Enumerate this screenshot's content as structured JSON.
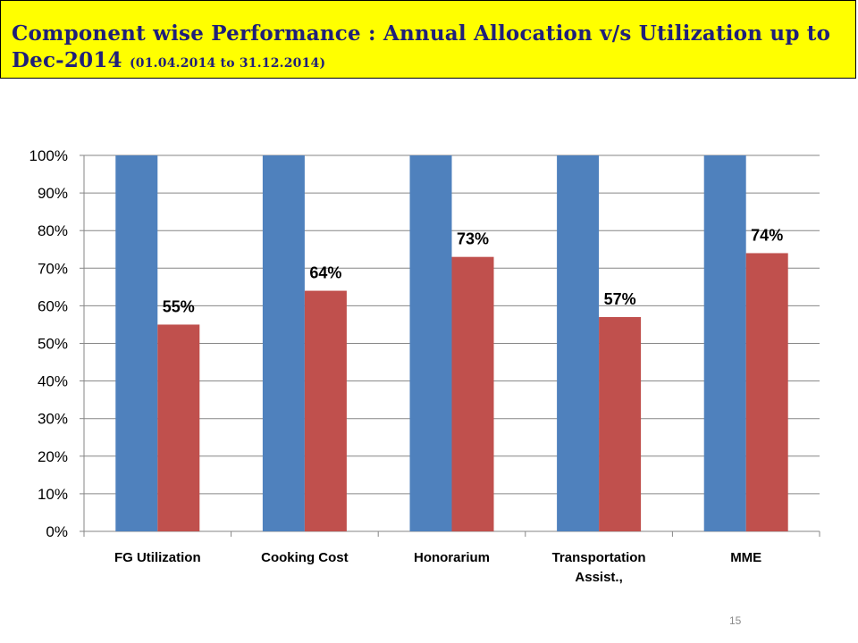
{
  "slide": {
    "title": "Component wise Performance : Annual Allocation v/s Utilization up to Dec-2014",
    "title_period": "(01.04.2014 to 31.12.2014)",
    "page_number": "15"
  },
  "chart_data": {
    "type": "bar",
    "categories": [
      "FG Utilization",
      "Cooking Cost",
      "Honorarium",
      "Transportation Assist.,",
      "MME"
    ],
    "series": [
      {
        "values": [
          100,
          100,
          100,
          100,
          100
        ],
        "color": "#4f81bd",
        "labels": [
          "",
          "",
          "",
          "",
          ""
        ]
      },
      {
        "values": [
          55,
          64,
          73,
          57,
          74
        ],
        "color": "#c0504d",
        "labels": [
          "55%",
          "64%",
          "73%",
          "57%",
          "74%"
        ]
      }
    ],
    "ylim": [
      0,
      100
    ],
    "yticks": [
      "0%",
      "10%",
      "20%",
      "30%",
      "40%",
      "50%",
      "60%",
      "70%",
      "80%",
      "90%",
      "100%"
    ],
    "grid": true,
    "legend": "none"
  }
}
